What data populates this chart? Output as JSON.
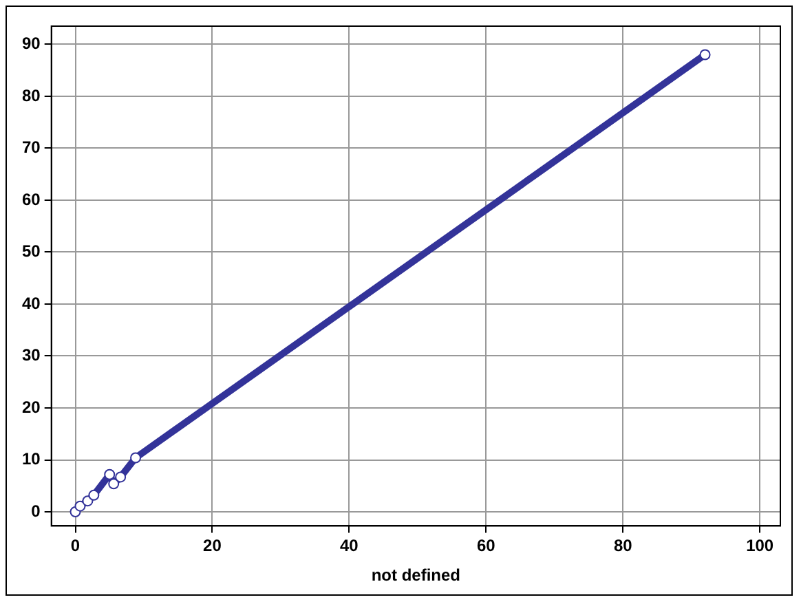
{
  "chart_data": {
    "type": "line",
    "xlabel": "not defined",
    "x": [
      0,
      0.7,
      1.8,
      2.7,
      5,
      5.6,
      6.6,
      8.8,
      92
    ],
    "series": [
      {
        "color": "#333399",
        "values": [
          0,
          1.1,
          2.1,
          3.2,
          7.2,
          5.4,
          6.7,
          10.4,
          88
        ]
      }
    ],
    "xlim": [
      -3.5,
      103
    ],
    "ylim": [
      -2.7,
      93.5
    ],
    "xticks": [
      0,
      20,
      40,
      60,
      80,
      100
    ],
    "yticks": [
      0,
      10,
      20,
      30,
      40,
      50,
      60,
      70,
      80,
      90
    ],
    "grid": true,
    "marker": "circle",
    "line_style": "solid",
    "legend": false
  }
}
